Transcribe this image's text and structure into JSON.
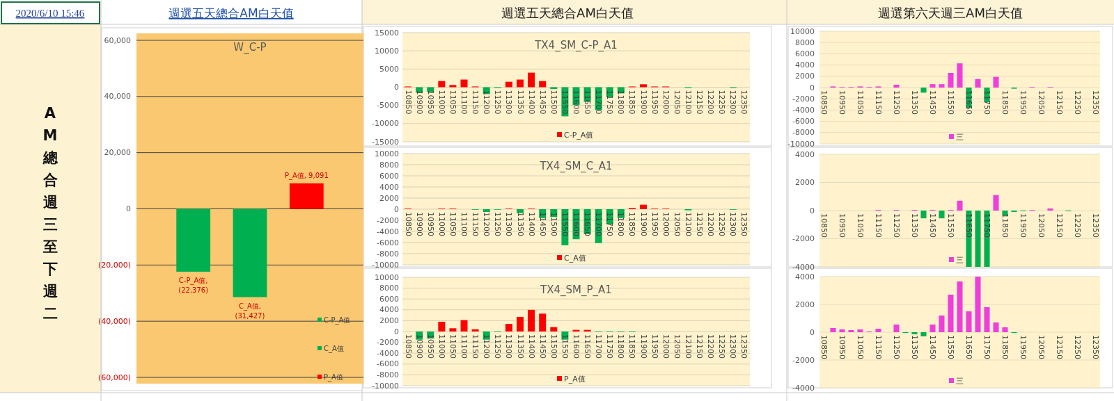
{
  "chart_data": [
    {
      "type": "bar",
      "title": "W_C-P",
      "categories": [
        null,
        null,
        null
      ],
      "tick_labels": "y",
      "grid": "y",
      "legend": "bottom right",
      "annotations": [
        "2020/6/10 15:46",
        "週選五天總合AM白天值",
        "AM總合週三至下週二"
      ],
      "ylim": [
        -60000,
        60000
      ],
      "yticks": [
        {
          "value": -60000,
          "label": "(60,000)"
        },
        {
          "value": -40000,
          "label": "(40,000)"
        },
        {
          "value": -20000,
          "label": "(20,000)"
        },
        0,
        {
          "value": 20000,
          "label": "20,000"
        },
        {
          "value": 40000,
          "label": "40,000"
        },
        {
          "value": 60000,
          "label": "60,000"
        }
      ],
      "series": [
        {
          "name": "C-P_A值",
          "color": "#00b050",
          "values": [
            -22376,
            null,
            null
          ],
          "value_labels": [
            "C-P_A值,\n(22,376)",
            null,
            null
          ]
        },
        {
          "name": "C_A值",
          "color": "#00b050",
          "values": [
            null,
            -31427,
            null
          ],
          "value_labels": [
            null,
            "C_A值,\n(31,427)",
            null
          ]
        },
        {
          "name": "P_A值",
          "color": "#ff0000",
          "values": [
            null,
            null,
            9091
          ],
          "value_labels": [
            null,
            null,
            "P_A值, 9,091"
          ]
        }
      ]
    },
    {
      "type": "bar",
      "title": "TX4_SM_C-P_A1",
      "grid": "y",
      "legend": "bottom",
      "annotations": [
        "週選五天總合AM白天值"
      ],
      "categories": [
        "10850",
        "10900",
        "10950",
        "11000",
        "11050",
        "11100",
        "11150",
        "11200",
        "11250",
        "11300",
        "11350",
        "11400",
        "11450",
        "11500",
        "11550",
        "11600",
        "11650",
        "11700",
        "11750",
        "11800",
        "11850",
        "11900",
        "11950",
        "12000",
        "12050",
        "12100",
        "12150",
        "12200",
        "12250",
        "12300",
        "12350"
      ],
      "ylim": [
        -15000,
        15000
      ],
      "yticks": [
        -15000,
        -10000,
        -5000,
        0,
        5000,
        10000,
        15000
      ],
      "series": [
        {
          "name": "C-P_A值",
          "color": "#ff0000",
          "colors": [
            "#ff0000",
            "#00b050",
            "#00b050",
            "#ff0000",
            "#ff0000",
            "#ff0000",
            "#ff0000",
            "#00b050",
            "#00b050",
            "#ff0000",
            "#ff0000",
            "#ff0000",
            "#ff0000",
            "#00b050",
            "#00b050",
            "#00b050",
            "#00b050",
            "#00b050",
            "#00b050",
            "#00b050",
            "#ff0000",
            "#ff0000",
            "#ff0000",
            "#ff0000",
            "#ff0000",
            "#00b050",
            "#ff0000",
            "#ff0000",
            "#ff0000",
            "#00b050",
            "#ff0000"
          ],
          "values": [
            200,
            -1500,
            -1300,
            1700,
            600,
            2100,
            200,
            -1900,
            -200,
            1500,
            2100,
            4000,
            1700,
            -500,
            -8000,
            -4900,
            -4000,
            -6300,
            -2700,
            -1700,
            200,
            800,
            200,
            200,
            0,
            -200,
            0,
            0,
            0,
            -200,
            0
          ]
        }
      ]
    },
    {
      "type": "bar",
      "title": "TX4_SM_C_A1",
      "grid": "y",
      "legend": "bottom",
      "categories": [
        "10850",
        "10900",
        "10950",
        "11000",
        "11050",
        "11100",
        "11150",
        "11200",
        "11250",
        "11300",
        "11350",
        "11400",
        "11450",
        "11500",
        "11550",
        "11600",
        "11650",
        "11700",
        "11750",
        "11800",
        "11850",
        "11900",
        "11950",
        "12000",
        "12050",
        "12100",
        "12150",
        "12200",
        "12250",
        "12300",
        "12350"
      ],
      "ylim": [
        -10000,
        10000
      ],
      "yticks": [
        -10000,
        -8000,
        -6000,
        -4000,
        -2000,
        0,
        2000,
        4000,
        6000,
        8000,
        10000
      ],
      "series": [
        {
          "name": "C_A值",
          "color": "#ff0000",
          "colors": [
            "#ff0000",
            "#ff0000",
            "#ff0000",
            "#ff0000",
            "#ff0000",
            "#ff0000",
            "#00b050",
            "#00b050",
            "#00b050",
            "#ff0000",
            "#00b050",
            "#ff0000",
            "#00b050",
            "#00b050",
            "#00b050",
            "#00b050",
            "#00b050",
            "#00b050",
            "#00b050",
            "#00b050",
            "#ff0000",
            "#ff0000",
            "#ff0000",
            "#ff0000",
            "#ff0000",
            "#00b050",
            "#ff0000",
            "#ff0000",
            "#ff0000",
            "#00b050",
            "#ff0000"
          ],
          "values": [
            100,
            0,
            0,
            100,
            100,
            0,
            -100,
            -500,
            -100,
            100,
            -700,
            100,
            -1600,
            -1400,
            -6500,
            -5400,
            -4500,
            -6100,
            -2700,
            -1600,
            200,
            800,
            100,
            100,
            0,
            -200,
            0,
            0,
            0,
            -100,
            0
          ]
        }
      ]
    },
    {
      "type": "bar",
      "title": "TX4_SM_P_A1",
      "grid": "y",
      "legend": "bottom",
      "categories": [
        "10850",
        "10900",
        "10950",
        "11000",
        "11050",
        "11100",
        "11150",
        "11200",
        "11250",
        "11300",
        "11350",
        "11400",
        "11450",
        "11500",
        "11550",
        "11600",
        "11650",
        "11700",
        "11750",
        "11800",
        "11850",
        "11900",
        "11950",
        "12000",
        "12050",
        "12100",
        "12150",
        "12200",
        "12250",
        "12300",
        "12350"
      ],
      "ylim": [
        -10000,
        10000
      ],
      "yticks": [
        -10000,
        -8000,
        -6000,
        -4000,
        -2000,
        0,
        2000,
        4000,
        6000,
        8000,
        10000
      ],
      "series": [
        {
          "name": "P_A值",
          "color": "#ff0000",
          "colors": [
            "#ff0000",
            "#00b050",
            "#00b050",
            "#ff0000",
            "#ff0000",
            "#ff0000",
            "#ff0000",
            "#00b050",
            "#00b050",
            "#ff0000",
            "#ff0000",
            "#ff0000",
            "#ff0000",
            "#ff0000",
            "#00b050",
            "#ff0000",
            "#ff0000",
            "#00b050",
            "#00b050",
            "#00b050",
            "#00b050",
            "#ff0000",
            "#ff0000",
            "#ff0000",
            "#ff0000",
            "#ff0000",
            "#ff0000",
            "#ff0000",
            "#ff0000",
            "#ff0000",
            "#ff0000"
          ],
          "values": [
            0,
            -1500,
            -1300,
            1800,
            600,
            2100,
            400,
            -1500,
            -100,
            1400,
            2700,
            4000,
            3300,
            800,
            -1500,
            300,
            300,
            -100,
            -100,
            -100,
            -100,
            0,
            0,
            0,
            0,
            0,
            0,
            0,
            0,
            0,
            0
          ]
        }
      ]
    },
    {
      "type": "bar",
      "grid": "y",
      "legend": "bottom",
      "annotations": [
        "週選第六天週三AM白天值"
      ],
      "categories": [
        "10850",
        null,
        "10950",
        null,
        "11050",
        null,
        "11150",
        null,
        "11250",
        null,
        "11350",
        null,
        "11450",
        null,
        "11550",
        null,
        "11650",
        null,
        "11750",
        null,
        "11850",
        null,
        "11950",
        null,
        "12050",
        null,
        "12150",
        null,
        "12250",
        null,
        "12350"
      ],
      "ylim": [
        -10000,
        10000
      ],
      "yticks": [
        -10000,
        -8000,
        -6000,
        -4000,
        -2000,
        0,
        2000,
        4000,
        6000,
        8000,
        10000
      ],
      "series": [
        {
          "name": "三",
          "color": "#ee3fdb",
          "colors": [
            "#ee3fdb",
            "#ee3fdb",
            "#ee3fdb",
            "#ee3fdb",
            "#ee3fdb",
            "#ee3fdb",
            "#ee3fdb",
            "#ee3fdb",
            "#ee3fdb",
            "#ee3fdb",
            "#ee3fdb",
            "#00b050",
            "#ee3fdb",
            "#ee3fdb",
            "#ee3fdb",
            "#ee3fdb",
            "#00b050",
            "#ee3fdb",
            "#00b050",
            "#ee3fdb",
            "#ee3fdb",
            "#00b050",
            "#ee3fdb",
            "#ee3fdb",
            "#ee3fdb",
            "#ee3fdb",
            "#ee3fdb",
            "#ee3fdb",
            "#ee3fdb",
            "#ee3fdb",
            "#ee3fdb"
          ],
          "values": [
            0,
            200,
            100,
            100,
            200,
            100,
            200,
            0,
            500,
            0,
            0,
            -900,
            600,
            600,
            2600,
            4300,
            -3600,
            1500,
            -2600,
            1900,
            0,
            -200,
            0,
            100,
            0,
            100,
            0,
            0,
            0,
            0,
            0
          ]
        }
      ]
    },
    {
      "type": "bar",
      "grid": "y",
      "legend": "bottom",
      "categories": [
        "10850",
        null,
        "10950",
        null,
        "11050",
        null,
        "11150",
        null,
        "11250",
        null,
        "11350",
        null,
        "11450",
        null,
        "11550",
        null,
        "11650",
        null,
        "11750",
        null,
        "11850",
        null,
        "11950",
        null,
        "12050",
        null,
        "12150",
        null,
        "12250",
        null,
        "12350"
      ],
      "ylim": [
        -4000,
        4000
      ],
      "yticks": [
        -4000,
        -2000,
        0,
        2000,
        4000
      ],
      "series": [
        {
          "name": "三",
          "color": "#ee3fdb",
          "colors": [
            "#ee3fdb",
            "#ee3fdb",
            "#ee3fdb",
            "#ee3fdb",
            "#ee3fdb",
            "#ee3fdb",
            "#ee3fdb",
            "#ee3fdb",
            "#ee3fdb",
            "#ee3fdb",
            "#ee3fdb",
            "#00b050",
            "#ee3fdb",
            "#00b050",
            "#ee3fdb",
            "#ee3fdb",
            "#00b050",
            "#00b050",
            "#00b050",
            "#ee3fdb",
            "#00b050",
            "#00b050",
            "#00b050",
            "#ee3fdb",
            "#ee3fdb",
            "#ee3fdb",
            "#ee3fdb",
            "#00b050",
            "#ee3fdb",
            "#ee3fdb",
            "#ee3fdb"
          ],
          "values": [
            0,
            0,
            0,
            0,
            0,
            0,
            50,
            0,
            50,
            0,
            50,
            -550,
            50,
            -550,
            50,
            700,
            -4000,
            -4000,
            -4000,
            1100,
            -350,
            -100,
            -50,
            50,
            0,
            150,
            0,
            -50,
            0,
            0,
            0
          ]
        }
      ]
    },
    {
      "type": "bar",
      "grid": "y",
      "legend": "bottom",
      "categories": [
        "10850",
        null,
        "10950",
        null,
        "11050",
        null,
        "11150",
        null,
        "11250",
        null,
        "11350",
        null,
        "11450",
        null,
        "11550",
        null,
        "11650",
        null,
        "11750",
        null,
        "11850",
        null,
        "11950",
        null,
        "12050",
        null,
        "12150",
        null,
        "12250",
        null,
        "12350"
      ],
      "ylim": [
        -4000,
        4000
      ],
      "yticks": [
        -4000,
        -2000,
        0,
        2000,
        4000
      ],
      "series": [
        {
          "name": "三",
          "color": "#ee3fdb",
          "colors": [
            "#ee3fdb",
            "#ee3fdb",
            "#ee3fdb",
            "#ee3fdb",
            "#ee3fdb",
            "#ee3fdb",
            "#ee3fdb",
            "#ee3fdb",
            "#ee3fdb",
            "#00b050",
            "#00b050",
            "#00b050",
            "#ee3fdb",
            "#ee3fdb",
            "#ee3fdb",
            "#ee3fdb",
            "#ee3fdb",
            "#ee3fdb",
            "#ee3fdb",
            "#ee3fdb",
            "#ee3fdb",
            "#00b050",
            "#ee3fdb",
            "#ee3fdb",
            "#ee3fdb",
            "#ee3fdb",
            "#ee3fdb",
            "#ee3fdb",
            "#ee3fdb",
            "#ee3fdb",
            "#ee3fdb"
          ],
          "values": [
            0,
            300,
            200,
            150,
            200,
            50,
            250,
            0,
            550,
            -50,
            -150,
            -300,
            550,
            1200,
            2700,
            3650,
            1500,
            4000,
            1800,
            700,
            350,
            -50,
            0,
            0,
            0,
            0,
            0,
            0,
            0,
            0,
            0
          ]
        }
      ]
    }
  ]
}
